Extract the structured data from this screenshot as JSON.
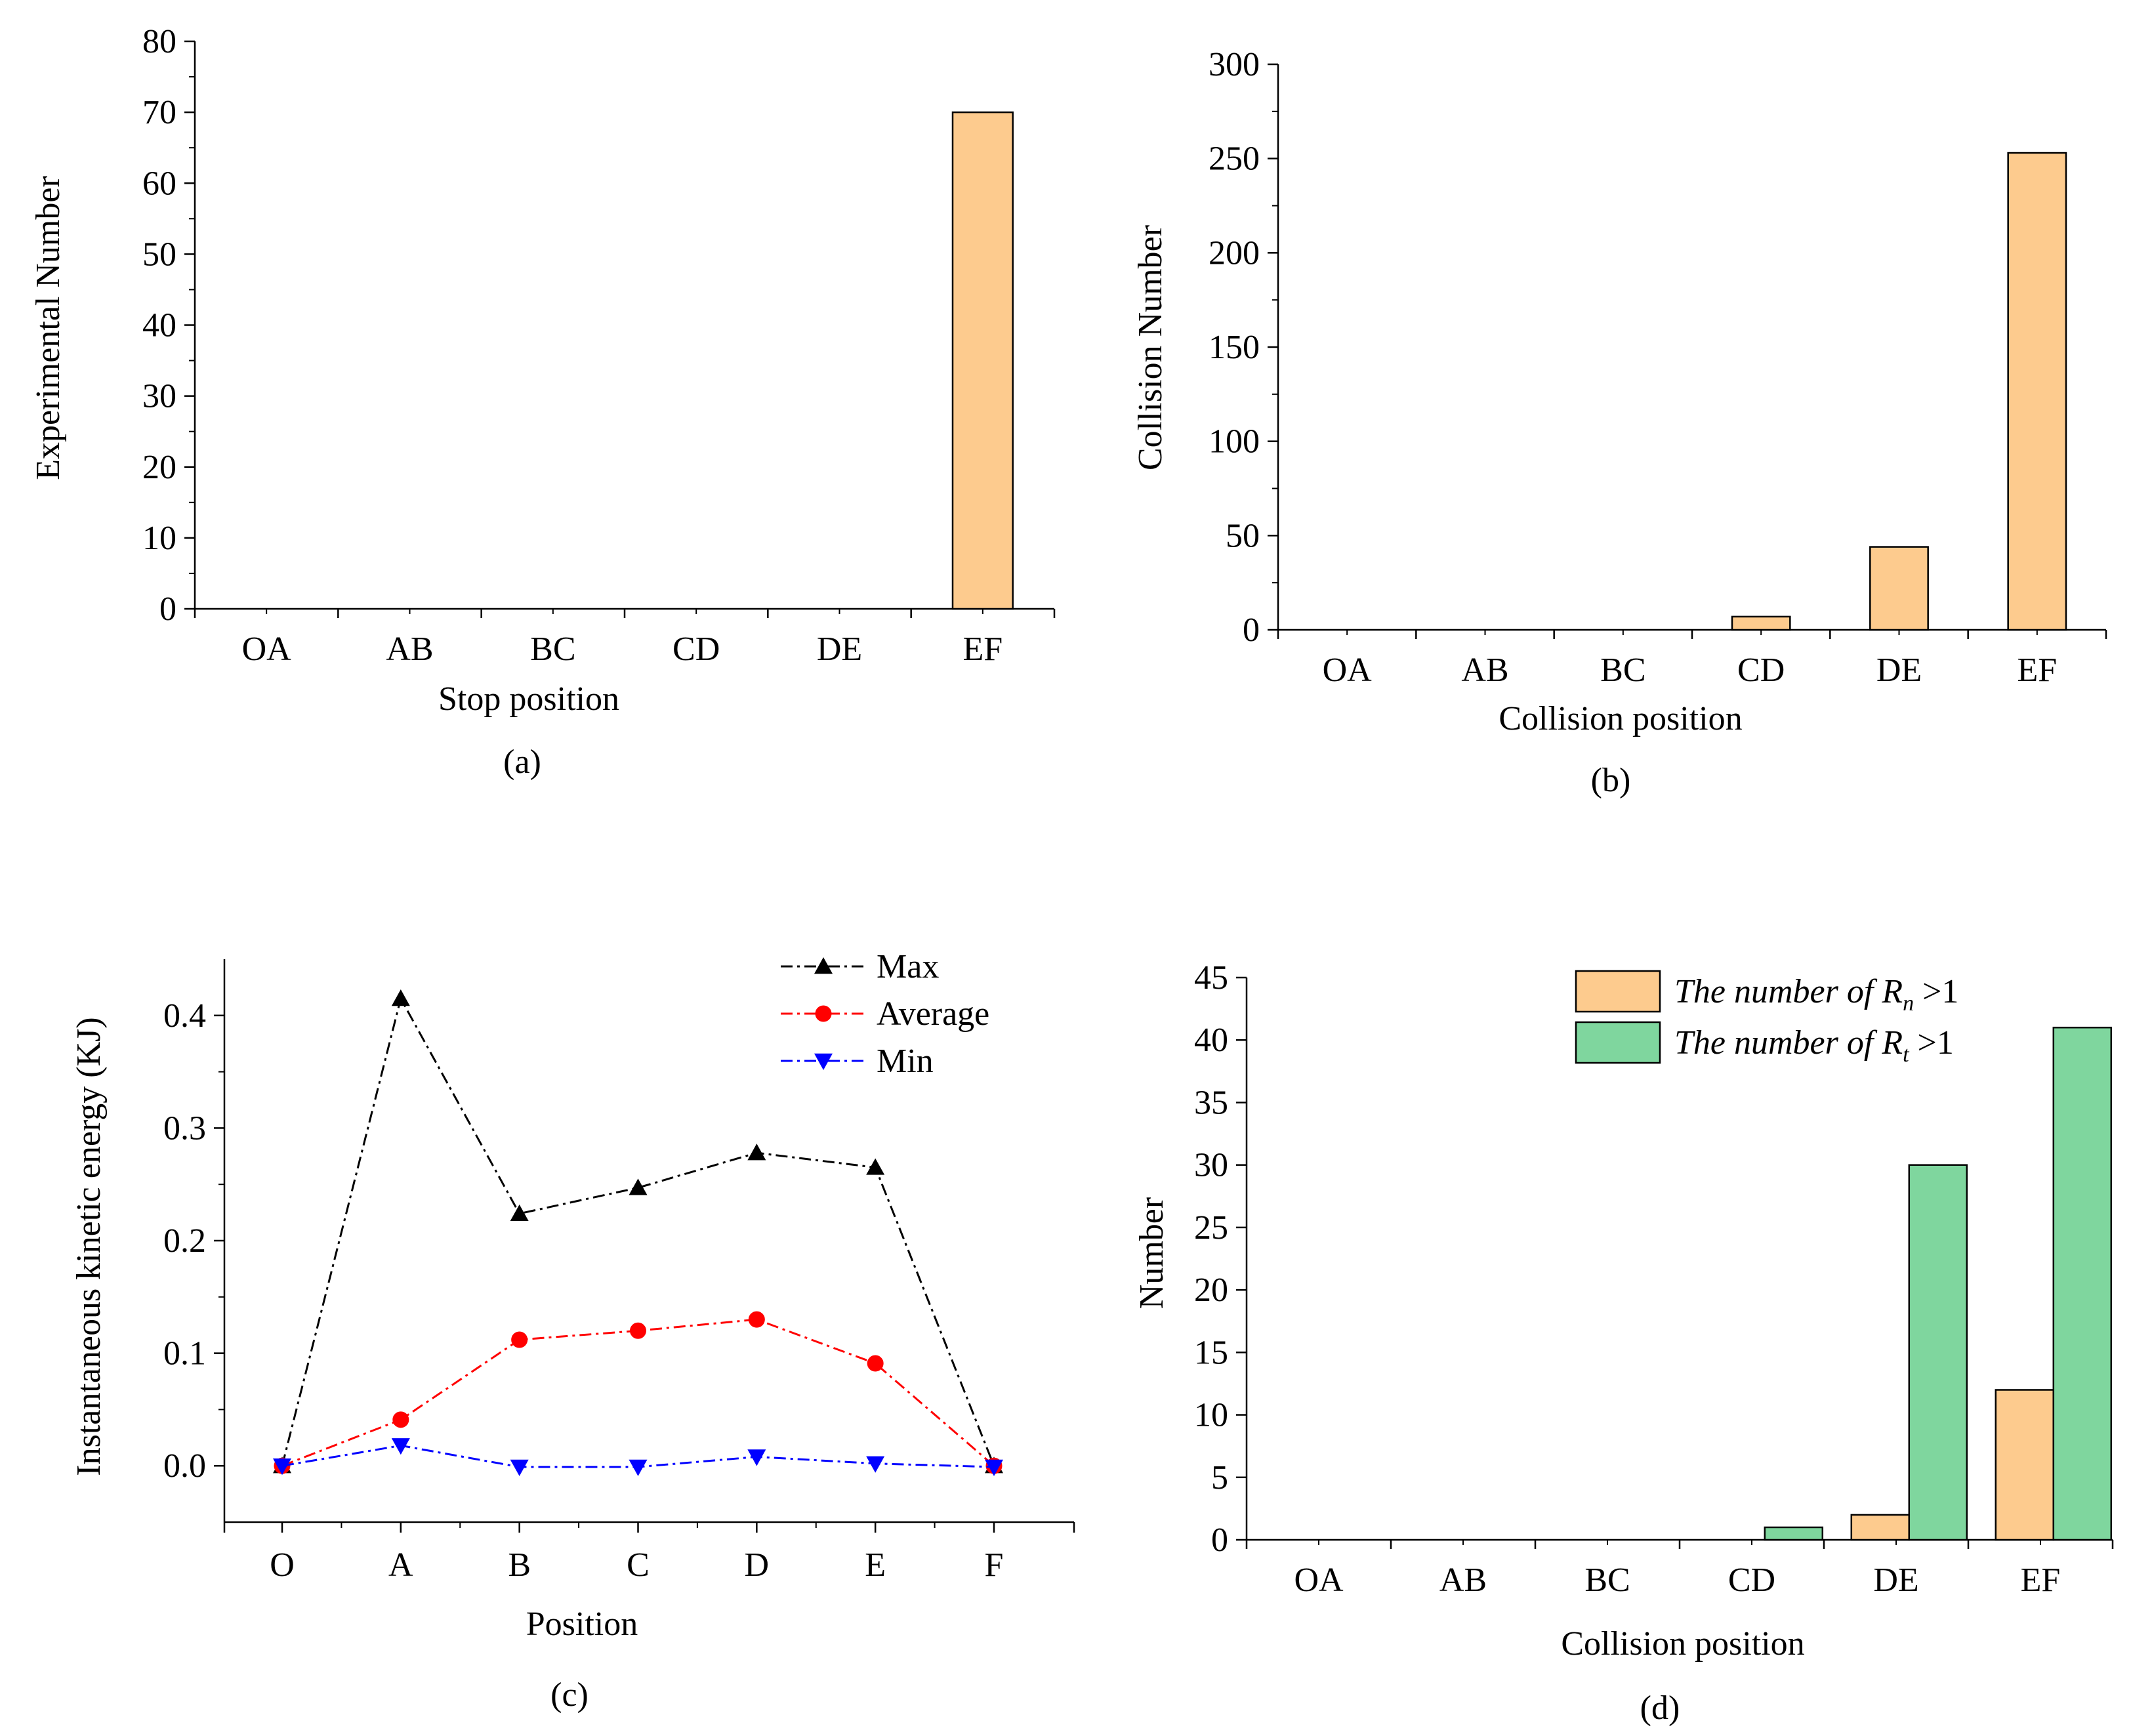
{
  "chart_data": [
    {
      "type": "bar",
      "panel_label": "(a)",
      "title": "",
      "xlabel": "Stop position",
      "ylabel": "Experimental Number",
      "categories": [
        "OA",
        "AB",
        "BC",
        "CD",
        "DE",
        "EF"
      ],
      "values": [
        0,
        0,
        0,
        0,
        0,
        70
      ],
      "ylim": [
        0,
        80
      ],
      "yticks": [
        0,
        10,
        20,
        30,
        40,
        50,
        60,
        70,
        80
      ],
      "bar_color": "#FDCB8E"
    },
    {
      "type": "bar",
      "panel_label": "(b)",
      "title": "",
      "xlabel": "Collision position",
      "ylabel": "Collision Number",
      "categories": [
        "OA",
        "AB",
        "BC",
        "CD",
        "DE",
        "EF"
      ],
      "values": [
        0,
        0,
        0,
        7,
        44,
        253
      ],
      "ylim": [
        0,
        300
      ],
      "yticks": [
        0,
        50,
        100,
        150,
        200,
        250,
        300
      ],
      "bar_color": "#FDCB8E"
    },
    {
      "type": "line",
      "panel_label": "(c)",
      "title": "",
      "xlabel": "Position",
      "ylabel": "Instantaneous kinetic energy (KJ)",
      "categories": [
        "O",
        "A",
        "B",
        "C",
        "D",
        "E",
        "F"
      ],
      "ylim": [
        -0.05,
        0.45
      ],
      "yticks": [
        0.0,
        0.1,
        0.2,
        0.3,
        0.4
      ],
      "ytick_labels": [
        "0.0",
        "0.1",
        "0.2",
        "0.3",
        "0.4"
      ],
      "legend_position": "top-right",
      "series": [
        {
          "name": "Max",
          "values": [
            0.0,
            0.415,
            0.224,
            0.247,
            0.278,
            0.265,
            0.0
          ],
          "color": "#000000",
          "marker": "triangle-up"
        },
        {
          "name": "Average",
          "values": [
            0.0,
            0.041,
            0.112,
            0.12,
            0.13,
            0.091,
            0.0
          ],
          "color": "#FF0000",
          "marker": "circle"
        },
        {
          "name": "Min",
          "values": [
            0.0,
            0.018,
            -0.001,
            -0.001,
            0.008,
            0.002,
            -0.001
          ],
          "color": "#0000FF",
          "marker": "triangle-down"
        }
      ]
    },
    {
      "type": "bar",
      "panel_label": "(d)",
      "title": "",
      "xlabel": "Collision position",
      "ylabel": "Number",
      "categories": [
        "OA",
        "AB",
        "BC",
        "CD",
        "DE",
        "EF"
      ],
      "ylim": [
        0,
        45
      ],
      "yticks": [
        0,
        5,
        10,
        15,
        20,
        25,
        30,
        35,
        40,
        45
      ],
      "legend_position": "top-center",
      "series": [
        {
          "name": "The number of",
          "symbol": "R",
          "subscript": "n",
          "condition": ">1",
          "values": [
            0,
            0,
            0,
            0,
            2,
            12
          ],
          "color": "#FDCB8E"
        },
        {
          "name": "The number of",
          "symbol": "R",
          "subscript": "t",
          "condition": ">1",
          "values": [
            0,
            0,
            0,
            1,
            30,
            41
          ],
          "color": "#7FD69E"
        }
      ]
    }
  ]
}
